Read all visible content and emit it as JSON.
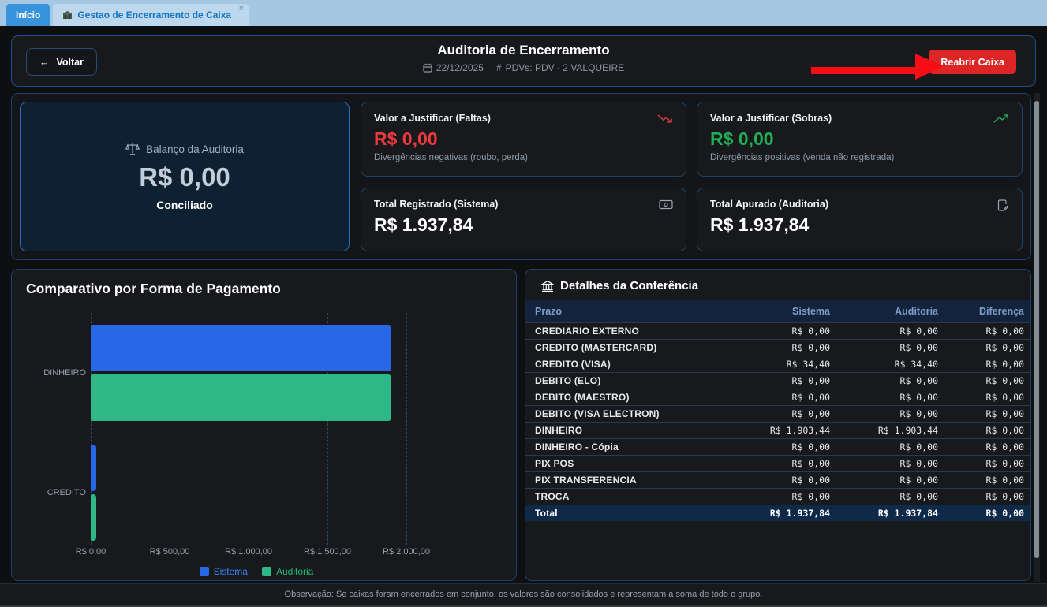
{
  "tabs": {
    "inicio": "Início",
    "gestao": "Gestao de Encerramento de Caixa",
    "close": "×"
  },
  "header": {
    "back_label": "Voltar",
    "back_arrow": "←",
    "title": "Auditoria de Encerramento",
    "date": "22/12/2025",
    "hash": "#",
    "pdvs": "PDVs: PDV - 2 VALQUEIRE",
    "reopen_label": "Reabrir Caixa"
  },
  "summary": {
    "balance": {
      "title": "Balanço da Auditoria",
      "value": "R$ 0,00",
      "status": "Conciliado"
    },
    "faltas": {
      "title": "Valor a Justificar (Faltas)",
      "value": "R$ 0,00",
      "desc": "Divergências negativas (roubo, perda)"
    },
    "sobras": {
      "title": "Valor a Justificar (Sobras)",
      "value": "R$ 0,00",
      "desc": "Divergências positivas (venda não registrada)"
    },
    "registrado": {
      "title": "Total Registrado (Sistema)",
      "value": "R$ 1.937,84"
    },
    "apurado": {
      "title": "Total Apurado (Auditoria)",
      "value": "R$ 1.937,84"
    }
  },
  "chart_data": {
    "type": "bar",
    "orientation": "horizontal",
    "title": "Comparativo por Forma de Pagamento",
    "categories": [
      "DINHEIRO",
      "CREDITO"
    ],
    "series": [
      {
        "name": "Sistema",
        "color": "#2767e8",
        "values": [
          1903.44,
          34.4
        ]
      },
      {
        "name": "Auditoria",
        "color": "#2eb787",
        "values": [
          1903.44,
          34.4
        ]
      }
    ],
    "xlim": [
      0,
      2000
    ],
    "x_ticks": [
      {
        "value": 0,
        "label": "R$ 0,00"
      },
      {
        "value": 500,
        "label": "R$ 500,00"
      },
      {
        "value": 1000,
        "label": "R$ 1.000,00"
      },
      {
        "value": 1500,
        "label": "R$ 1.500,00"
      },
      {
        "value": 2000,
        "label": "R$ 2.000,00"
      }
    ],
    "legend": [
      {
        "name": "Sistema",
        "color": "#2767e8",
        "text_color": "#3b82f6"
      },
      {
        "name": "Auditoria",
        "color": "#2eb787",
        "text_color": "#25b877"
      }
    ],
    "grid": "dashed-vertical",
    "legend_position": "bottom-center"
  },
  "table": {
    "title": "Detalhes da Conferência",
    "columns": [
      "Prazo",
      "Sistema",
      "Auditoria",
      "Diferença"
    ],
    "rows": [
      {
        "label": "CREDIARIO EXTERNO",
        "sistema": "R$ 0,00",
        "auditoria": "R$ 0,00",
        "diferenca": "R$ 0,00"
      },
      {
        "label": "CREDITO (MASTERCARD)",
        "sistema": "R$ 0,00",
        "auditoria": "R$ 0,00",
        "diferenca": "R$ 0,00"
      },
      {
        "label": "CREDITO (VISA)",
        "sistema": "R$ 34,40",
        "auditoria": "R$ 34,40",
        "diferenca": "R$ 0,00"
      },
      {
        "label": "DEBITO (ELO)",
        "sistema": "R$ 0,00",
        "auditoria": "R$ 0,00",
        "diferenca": "R$ 0,00"
      },
      {
        "label": "DEBITO (MAESTRO)",
        "sistema": "R$ 0,00",
        "auditoria": "R$ 0,00",
        "diferenca": "R$ 0,00"
      },
      {
        "label": "DEBITO (VISA ELECTRON)",
        "sistema": "R$ 0,00",
        "auditoria": "R$ 0,00",
        "diferenca": "R$ 0,00"
      },
      {
        "label": "DINHEIRO",
        "sistema": "R$ 1.903,44",
        "auditoria": "R$ 1.903,44",
        "diferenca": "R$ 0,00"
      },
      {
        "label": "DINHEIRO - Cópia",
        "sistema": "R$ 0,00",
        "auditoria": "R$ 0,00",
        "diferenca": "R$ 0,00"
      },
      {
        "label": "PIX POS",
        "sistema": "R$ 0,00",
        "auditoria": "R$ 0,00",
        "diferenca": "R$ 0,00"
      },
      {
        "label": "PIX TRANSFERENCIA",
        "sistema": "R$ 0,00",
        "auditoria": "R$ 0,00",
        "diferenca": "R$ 0,00"
      },
      {
        "label": "TROCA",
        "sistema": "R$ 0,00",
        "auditoria": "R$ 0,00",
        "diferenca": "R$ 0,00"
      }
    ],
    "total": {
      "label": "Total",
      "sistema": "R$ 1.937,84",
      "auditoria": "R$ 1.937,84",
      "diferenca": "R$ 0,00"
    }
  },
  "footer": {
    "note": "Observação: Se caixas foram encerrados em conjunto, os valores são consolidados e representam a soma de todo o grupo."
  },
  "colors": {
    "negative": "#ee3a3c",
    "positive": "#21ae54",
    "annotation_arrow": "#f60d15",
    "reopen_button": "#dc2626",
    "panel_border": "#1d4268"
  }
}
